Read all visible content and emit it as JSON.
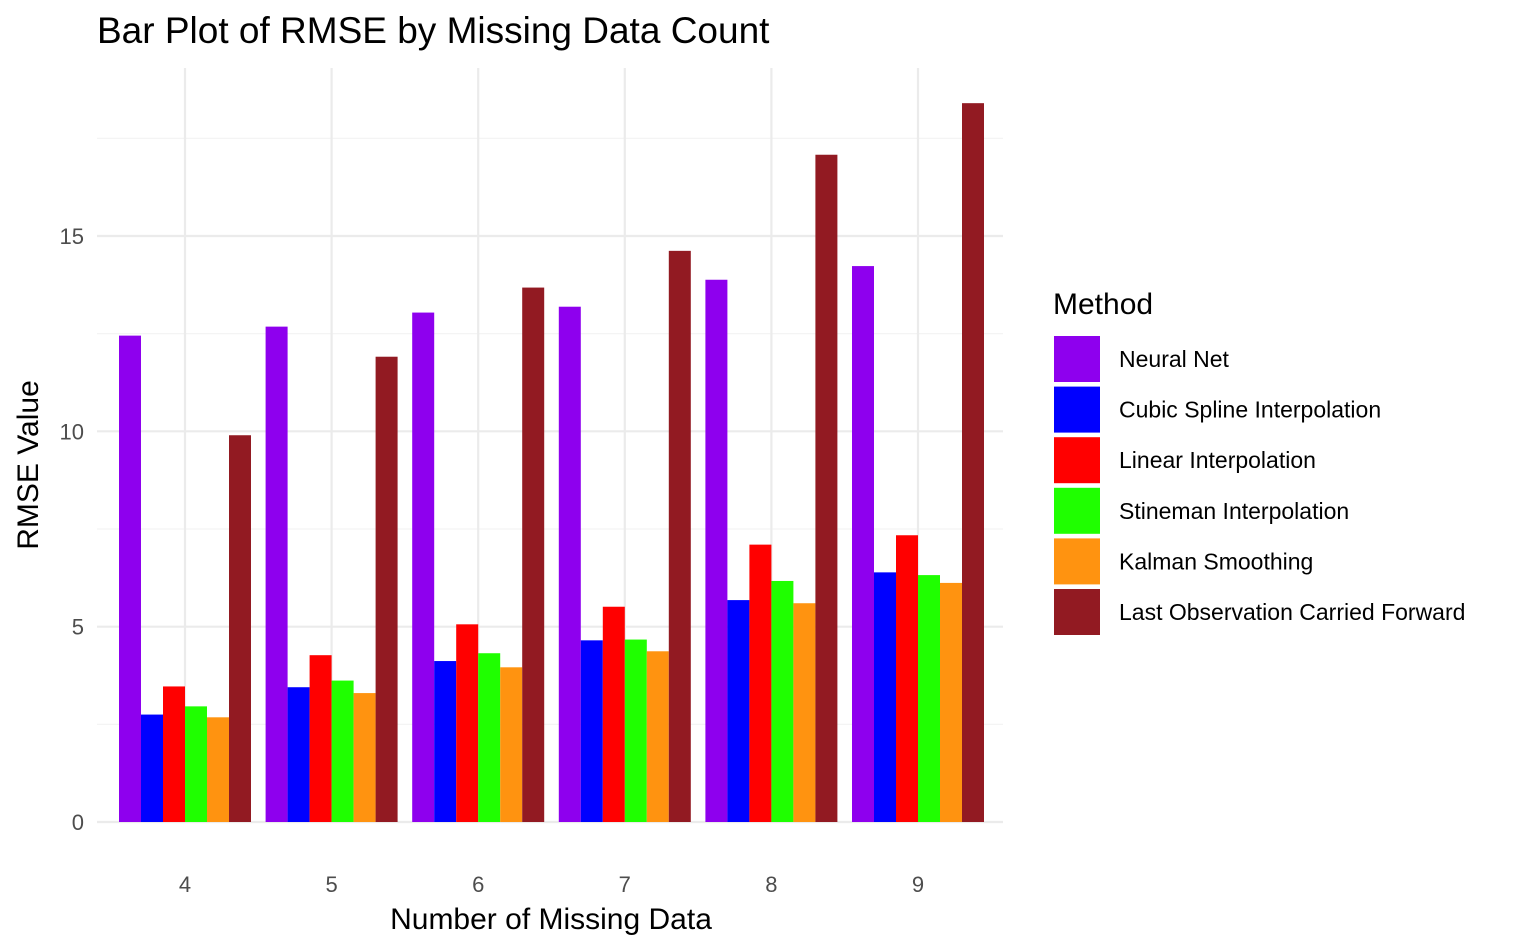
{
  "chart_data": {
    "type": "bar",
    "title": "Bar Plot of RMSE by Missing Data Count",
    "xlabel": "Number of Missing Data",
    "ylabel": "RMSE Value",
    "categories": [
      "4",
      "5",
      "6",
      "7",
      "8",
      "9"
    ],
    "ylim": [
      0,
      19
    ],
    "yticks": [
      0,
      5,
      10,
      15
    ],
    "ytick_labels": [
      "0",
      "5",
      "10",
      "15"
    ],
    "legend": {
      "title": "Method",
      "position": "right"
    },
    "grid": true,
    "series": [
      {
        "name": "Neural Net",
        "color": "#8e00ee",
        "values": [
          12.45,
          12.68,
          13.04,
          13.19,
          13.88,
          14.23
        ]
      },
      {
        "name": "Cubic Spline Interpolation",
        "color": "#0000ff",
        "values": [
          2.75,
          3.45,
          4.12,
          4.65,
          5.68,
          6.39
        ]
      },
      {
        "name": "Linear Interpolation",
        "color": "#ff0000",
        "values": [
          3.47,
          4.27,
          5.06,
          5.51,
          7.1,
          7.34
        ]
      },
      {
        "name": "Stineman Interpolation",
        "color": "#1fff00",
        "values": [
          2.96,
          3.62,
          4.32,
          4.67,
          6.17,
          6.32
        ]
      },
      {
        "name": "Kalman Smoothing",
        "color": "#ff9310",
        "values": [
          2.68,
          3.3,
          3.96,
          4.37,
          5.6,
          6.12
        ]
      },
      {
        "name": "Last Observation Carried Forward",
        "color": "#921a22",
        "values": [
          9.9,
          11.91,
          13.68,
          14.62,
          17.08,
          18.4
        ]
      }
    ]
  }
}
